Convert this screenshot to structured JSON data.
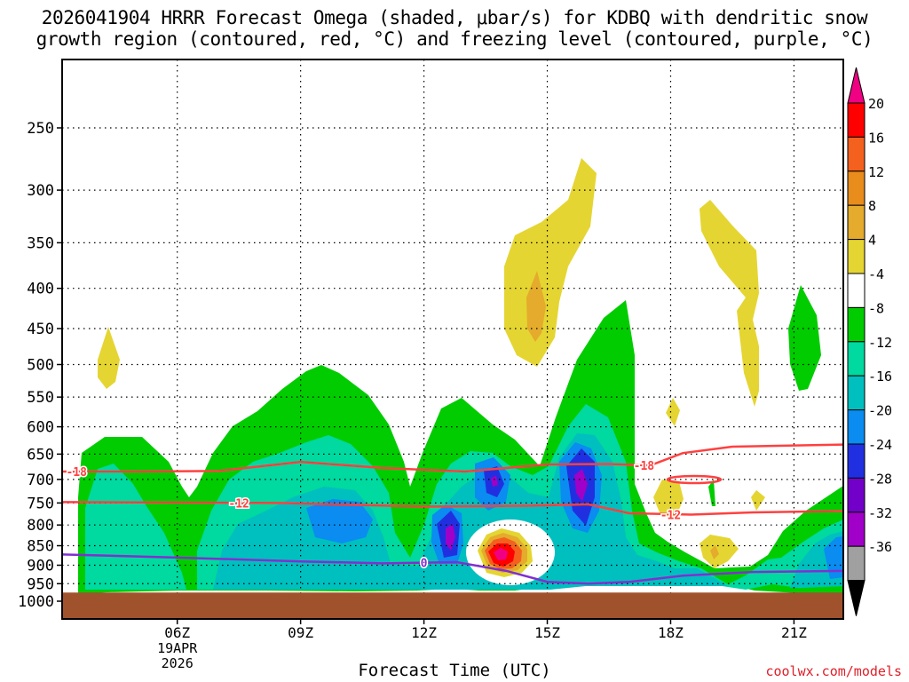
{
  "chart_data": {
    "type": "contour",
    "title_line1": "2026041904 HRRR Forecast Omega (shaded, μbar/s) for KDBQ with dendritic snow",
    "title_line2": "growth region (contoured, red, °C) and freezing level (contoured, purple, °C)",
    "xlabel": "Forecast Time (UTC)",
    "credit": "coolwx.com/models",
    "x_range_hours": [
      3.2,
      22.2
    ],
    "x_ticks": [
      {
        "hour": 6,
        "label": "06Z",
        "sub1": "19APR",
        "sub2": "2026"
      },
      {
        "hour": 9,
        "label": "09Z"
      },
      {
        "hour": 12,
        "label": "12Z"
      },
      {
        "hour": 15,
        "label": "15Z"
      },
      {
        "hour": 18,
        "label": "18Z"
      },
      {
        "hour": 21,
        "label": "21Z"
      }
    ],
    "y_axis_range_hPa": [
      200,
      1020
    ],
    "y_ticks": [
      250,
      300,
      350,
      400,
      450,
      500,
      550,
      600,
      650,
      700,
      750,
      800,
      850,
      900,
      950,
      1000
    ],
    "ground_hPa": 975,
    "colorbar": {
      "labels": [
        "20",
        "16",
        "12",
        "8",
        "4",
        "-4",
        "-8",
        "-12",
        "-16",
        "-20",
        "-24",
        "-28",
        "-32",
        "-36"
      ],
      "colors": [
        "#fe0000",
        "#f4601e",
        "#e88c1c",
        "#e4ab2c",
        "#e5d532",
        "#ffffff",
        "#00cc00",
        "#00d99f",
        "#00bfbf",
        "#0a8cf0",
        "#2030e0",
        "#7300c8",
        "#a000c8",
        "#a0a0a0"
      ],
      "top_arrow_color": "#f00082",
      "bottom_arrow_color": "#000000"
    },
    "temperature_contours": [
      {
        "label": "-18",
        "color": "#ff4040",
        "points": [
          [
            3.2,
            684
          ],
          [
            5,
            684
          ],
          [
            7,
            683
          ],
          [
            9,
            665
          ],
          [
            11,
            677
          ],
          [
            13,
            684
          ],
          [
            15,
            670
          ],
          [
            16.5,
            669
          ],
          [
            17.5,
            672
          ],
          [
            18.3,
            648
          ],
          [
            19.5,
            636
          ],
          [
            22.2,
            632
          ]
        ]
      },
      {
        "label": "-12",
        "color": "#ff4040",
        "points": [
          [
            3.2,
            748
          ],
          [
            6,
            749
          ],
          [
            8.5,
            750
          ],
          [
            12,
            758
          ],
          [
            14.5,
            756
          ],
          [
            16,
            753
          ],
          [
            17,
            773
          ],
          [
            18.5,
            776
          ],
          [
            20,
            771
          ],
          [
            22.2,
            768
          ]
        ]
      }
    ],
    "freezing_level": {
      "label": "0",
      "color": "#8030d0",
      "points": [
        [
          3.2,
          872
        ],
        [
          6,
          880
        ],
        [
          9,
          890
        ],
        [
          11,
          895
        ],
        [
          12.8,
          892
        ],
        [
          14,
          915
        ],
        [
          15,
          945
        ],
        [
          16,
          950
        ],
        [
          17,
          945
        ],
        [
          18.3,
          928
        ],
        [
          20,
          918
        ],
        [
          22.2,
          915
        ]
      ]
    }
  }
}
